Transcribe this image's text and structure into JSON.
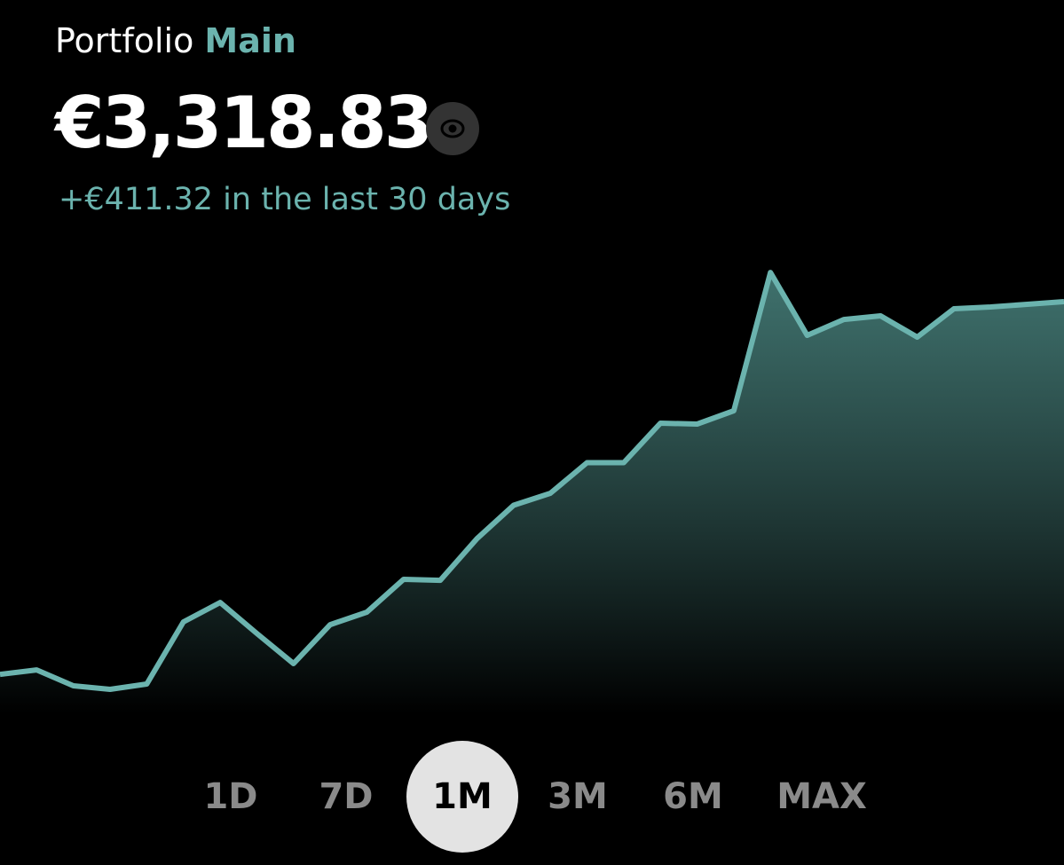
{
  "header": {
    "title": "Portfolio",
    "portfolio_name": "Main",
    "balance": "€3,318.83",
    "change": "+€411.32 in the last 30 days"
  },
  "chart_data": {
    "type": "area",
    "color": "#6bb3ae",
    "values": [
      2907.51,
      2912.4,
      2894.8,
      2890.9,
      2896.8,
      2965.3,
      2986.8,
      2952.6,
      2919.3,
      2962.3,
      2976.1,
      3012.3,
      3011.3,
      3057.3,
      3094.1,
      3107.3,
      3141.1,
      3141.1,
      3184.7,
      3183.7,
      3198.4,
      3351.1,
      3281.6,
      3299.2,
      3303.2,
      3279.7,
      3311.0,
      3313.0,
      3315.9,
      3318.83
    ],
    "ylim": [
      2863.5,
      3377.6
    ]
  },
  "range_buttons": {
    "labels": [
      "1D",
      "7D",
      "1M",
      "3M",
      "6M",
      "MAX"
    ],
    "selected": 2
  }
}
